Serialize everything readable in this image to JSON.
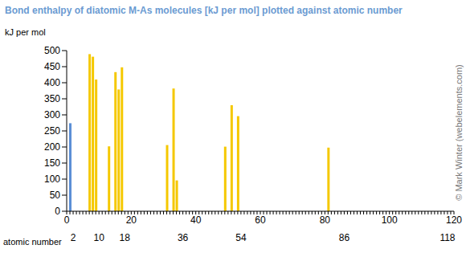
{
  "chart_data": {
    "type": "bar",
    "title": "Bond enthalpy of diatomic M-As molecules [kJ per mol] plotted against atomic number",
    "ylabel": "kJ per mol",
    "xlabel": "atomic number",
    "annotation": "© Mark Winter (webelements.com)",
    "x": [
      1,
      7,
      8,
      9,
      13,
      15,
      16,
      17,
      31,
      33,
      34,
      49,
      51,
      53,
      81
    ],
    "values": [
      274,
      489,
      481,
      410,
      202,
      433,
      379,
      448,
      206,
      382,
      96,
      201,
      330,
      296,
      198
    ],
    "colors": [
      "#5b8fd6",
      "#f5c800",
      "#f5c800",
      "#f5c800",
      "#f5c800",
      "#f5c800",
      "#f5c800",
      "#f5c800",
      "#f5c800",
      "#f5c800",
      "#f5c800",
      "#f5c800",
      "#f5c800",
      "#f5c800",
      "#f5c800"
    ],
    "xlim": [
      0,
      120
    ],
    "xticks": [
      0,
      20,
      40,
      60,
      80,
      100,
      120
    ],
    "x2ticks": [
      2,
      10,
      18,
      36,
      54,
      86,
      118
    ],
    "ylim": [
      0,
      500
    ],
    "yticks": [
      0,
      50,
      100,
      150,
      200,
      250,
      300,
      350,
      400,
      450,
      500
    ],
    "grid": false
  }
}
